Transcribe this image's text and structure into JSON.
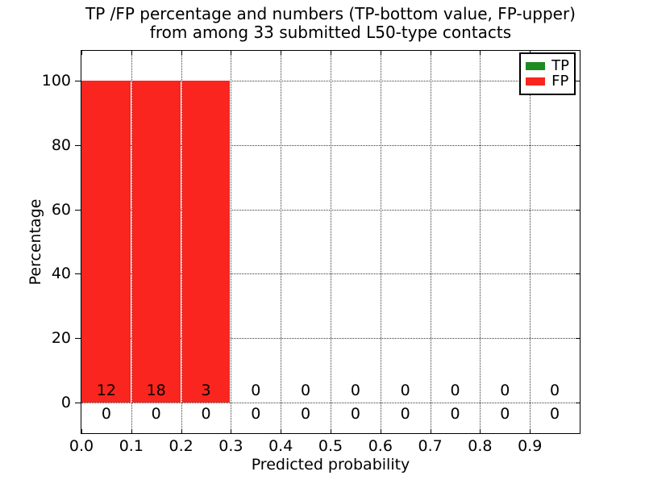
{
  "chart_data": {
    "type": "bar",
    "stacked": true,
    "title_line1": "TP /FP percentage and numbers (TP-bottom value, FP-upper)",
    "title_line2": "from among 33 submitted L50-type contacts",
    "xlabel": "Predicted probability",
    "ylabel": "Percentage",
    "xlim": [
      0.0,
      1.0
    ],
    "ylim": [
      -10,
      110
    ],
    "grid": "dotted",
    "legend_position": "upper right",
    "bin_width": 0.1,
    "xtick_labels": [
      "0.0",
      "0.1",
      "0.2",
      "0.3",
      "0.4",
      "0.5",
      "0.6",
      "0.7",
      "0.8",
      "0.9"
    ],
    "ytick_labels": [
      "0",
      "20",
      "40",
      "60",
      "80",
      "100"
    ],
    "series": [
      {
        "name": "TP",
        "color": "#1e8b22",
        "percent_values": [
          0,
          0,
          0,
          0,
          0,
          0,
          0,
          0,
          0,
          0
        ],
        "counts": [
          0,
          0,
          0,
          0,
          0,
          0,
          0,
          0,
          0,
          0
        ],
        "counts_row": "bottom"
      },
      {
        "name": "FP",
        "color": "#f9251e",
        "percent_values": [
          100,
          100,
          100,
          0,
          0,
          0,
          0,
          0,
          0,
          0
        ],
        "counts": [
          12,
          18,
          3,
          0,
          0,
          0,
          0,
          0,
          0,
          0
        ],
        "counts_row": "upper"
      }
    ]
  }
}
